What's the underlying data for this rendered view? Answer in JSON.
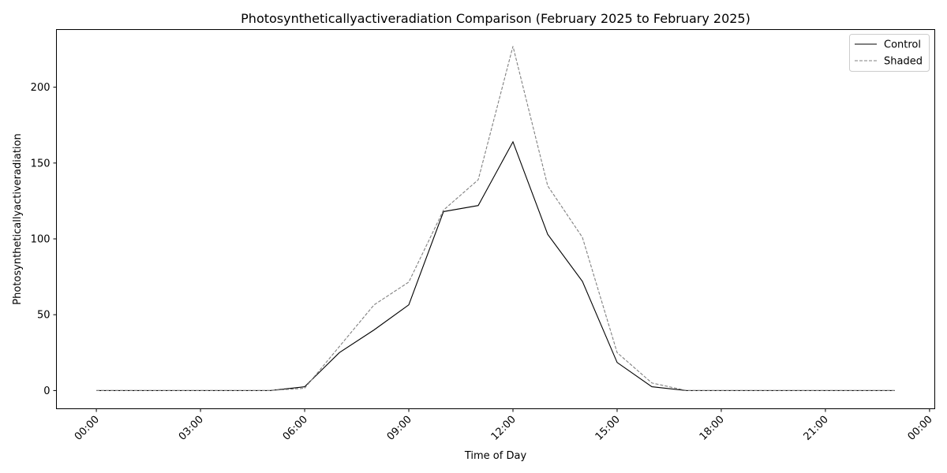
{
  "chart_data": {
    "type": "line",
    "title": "Photosyntheticallyactiveradiation Comparison (February 2025 to February 2025)",
    "xlabel": "Time of Day",
    "ylabel": "Photosyntheticallyactiveradiation",
    "x": [
      0,
      1,
      2,
      3,
      4,
      5,
      6,
      7,
      8,
      9,
      10,
      11,
      12,
      13,
      14,
      15,
      16,
      17,
      18,
      19,
      20,
      21,
      22,
      23
    ],
    "x_tick_values": [
      0,
      3,
      6,
      9,
      12,
      15,
      18,
      21,
      24
    ],
    "x_tick_labels": [
      "00:00",
      "03:00",
      "06:00",
      "09:00",
      "12:00",
      "15:00",
      "18:00",
      "21:00",
      "00:00"
    ],
    "xlim": [
      -1.15,
      24.15
    ],
    "y_ticks": [
      0,
      50,
      100,
      150,
      200
    ],
    "ylim": [
      -12,
      238
    ],
    "grid": false,
    "legend_position": "top-right",
    "series": [
      {
        "name": "Control",
        "color": "#000000",
        "style": "solid",
        "values": [
          0,
          0,
          0,
          0,
          0,
          0,
          2.5,
          25,
          40,
          56.5,
          118,
          122,
          164,
          103,
          72,
          18.5,
          2.5,
          0,
          0,
          0,
          0,
          0,
          0,
          0
        ]
      },
      {
        "name": "Shaded",
        "color": "#808080",
        "style": "dashed",
        "values": [
          0,
          0,
          0,
          0,
          0,
          0,
          1.5,
          29,
          56.5,
          71.5,
          119,
          139,
          227,
          135,
          101,
          25,
          5,
          0,
          0,
          0,
          0,
          0,
          0,
          0
        ]
      }
    ]
  }
}
